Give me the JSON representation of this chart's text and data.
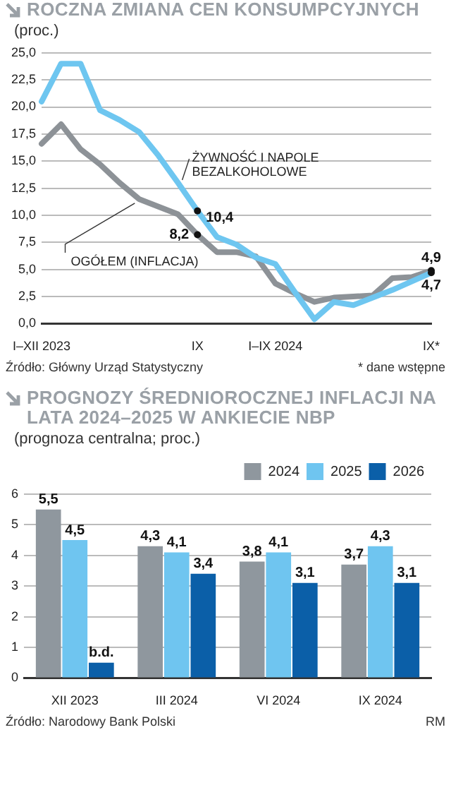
{
  "chart_data": [
    {
      "type": "line",
      "title": "ROCZNA ZMIANA CEN KONSUMPCYJNYCH",
      "subtitle": "(proc.)",
      "categories": [
        "I–XII 2023",
        null,
        null,
        null,
        null,
        null,
        null,
        null,
        "IX",
        null,
        null,
        null,
        "I–IX 2024",
        null,
        null,
        null,
        null,
        null,
        null,
        null,
        "IX*"
      ],
      "series": [
        {
          "name": "ŻYWNOŚĆ I NAPOLE BEZALKOHOLOWE",
          "color": "#6ec6f0",
          "values": [
            20.5,
            24.0,
            24.0,
            19.7,
            18.8,
            17.7,
            15.5,
            13.0,
            10.4,
            8.0,
            7.3,
            6.1,
            5.5,
            2.9,
            0.4,
            2.0,
            1.7,
            2.4,
            3.1,
            3.9,
            4.7
          ],
          "value_labels": [
            null,
            null,
            null,
            null,
            null,
            null,
            null,
            null,
            "10,4",
            null,
            null,
            null,
            null,
            null,
            null,
            null,
            null,
            null,
            null,
            null,
            "4,7"
          ]
        },
        {
          "name": "OGÓŁEM (INFLACJA)",
          "color": "#8d9297",
          "values": [
            16.6,
            18.4,
            16.1,
            14.7,
            13.0,
            11.5,
            10.8,
            10.1,
            8.2,
            6.6,
            6.6,
            6.2,
            3.7,
            2.8,
            2.0,
            2.4,
            2.5,
            2.6,
            4.2,
            4.3,
            4.9
          ],
          "value_labels": [
            null,
            null,
            null,
            null,
            null,
            null,
            null,
            null,
            "8,2",
            null,
            null,
            null,
            null,
            null,
            null,
            null,
            null,
            null,
            null,
            null,
            "4,9"
          ]
        }
      ],
      "ylim": [
        0,
        25
      ],
      "yticks": [
        {
          "value": 0,
          "label": "0,0"
        },
        {
          "value": 2.5,
          "label": "2,5"
        },
        {
          "value": 5,
          "label": "5,0"
        },
        {
          "value": 7.5,
          "label": "7,5"
        },
        {
          "value": 10,
          "label": "10,0"
        },
        {
          "value": 12.5,
          "label": "12,5"
        },
        {
          "value": 15,
          "label": "15,0"
        },
        {
          "value": 17.5,
          "label": "17,5"
        },
        {
          "value": 20,
          "label": "20,0"
        },
        {
          "value": 22.5,
          "label": "22,5"
        },
        {
          "value": 25,
          "label": "25,0"
        }
      ],
      "grid": "y",
      "legend": false,
      "annotations": [
        "Źródło: Główny Urząd Statystyczny",
        "* dane wstępne"
      ]
    },
    {
      "type": "bar",
      "title": "PROGNOZY ŚREDNIOROCZNEJ INFLACJI NA LATA 2024–2025 W ANKIECIE NBP",
      "subtitle": "(prognoza centralna; proc.)",
      "categories": [
        "XII 2023",
        "III 2024",
        "VI 2024",
        "IX 2024"
      ],
      "series": [
        {
          "name": "2024",
          "color": "#8f979e",
          "values": [
            5.5,
            4.3,
            3.8,
            3.7
          ],
          "value_labels": [
            "5,5",
            "4,3",
            "3,8",
            "3,7"
          ]
        },
        {
          "name": "2025",
          "color": "#6fc5f0",
          "values": [
            4.5,
            4.1,
            4.1,
            4.3
          ],
          "value_labels": [
            "4,5",
            "4,1",
            "4,1",
            "4,3"
          ]
        },
        {
          "name": "2026",
          "color": "#0b5fa8",
          "values": [
            0.5,
            3.4,
            3.1,
            3.1
          ],
          "value_labels": [
            "b.d.",
            "3,4",
            "3,1",
            "3,1"
          ]
        }
      ],
      "ylim": [
        0,
        6
      ],
      "yticks": [
        0,
        1,
        2,
        3,
        4,
        5,
        6
      ],
      "grid": "y",
      "legend": "top right",
      "annotations": [
        "Źródło: Narodowy Bank Polski",
        "RM"
      ]
    }
  ]
}
